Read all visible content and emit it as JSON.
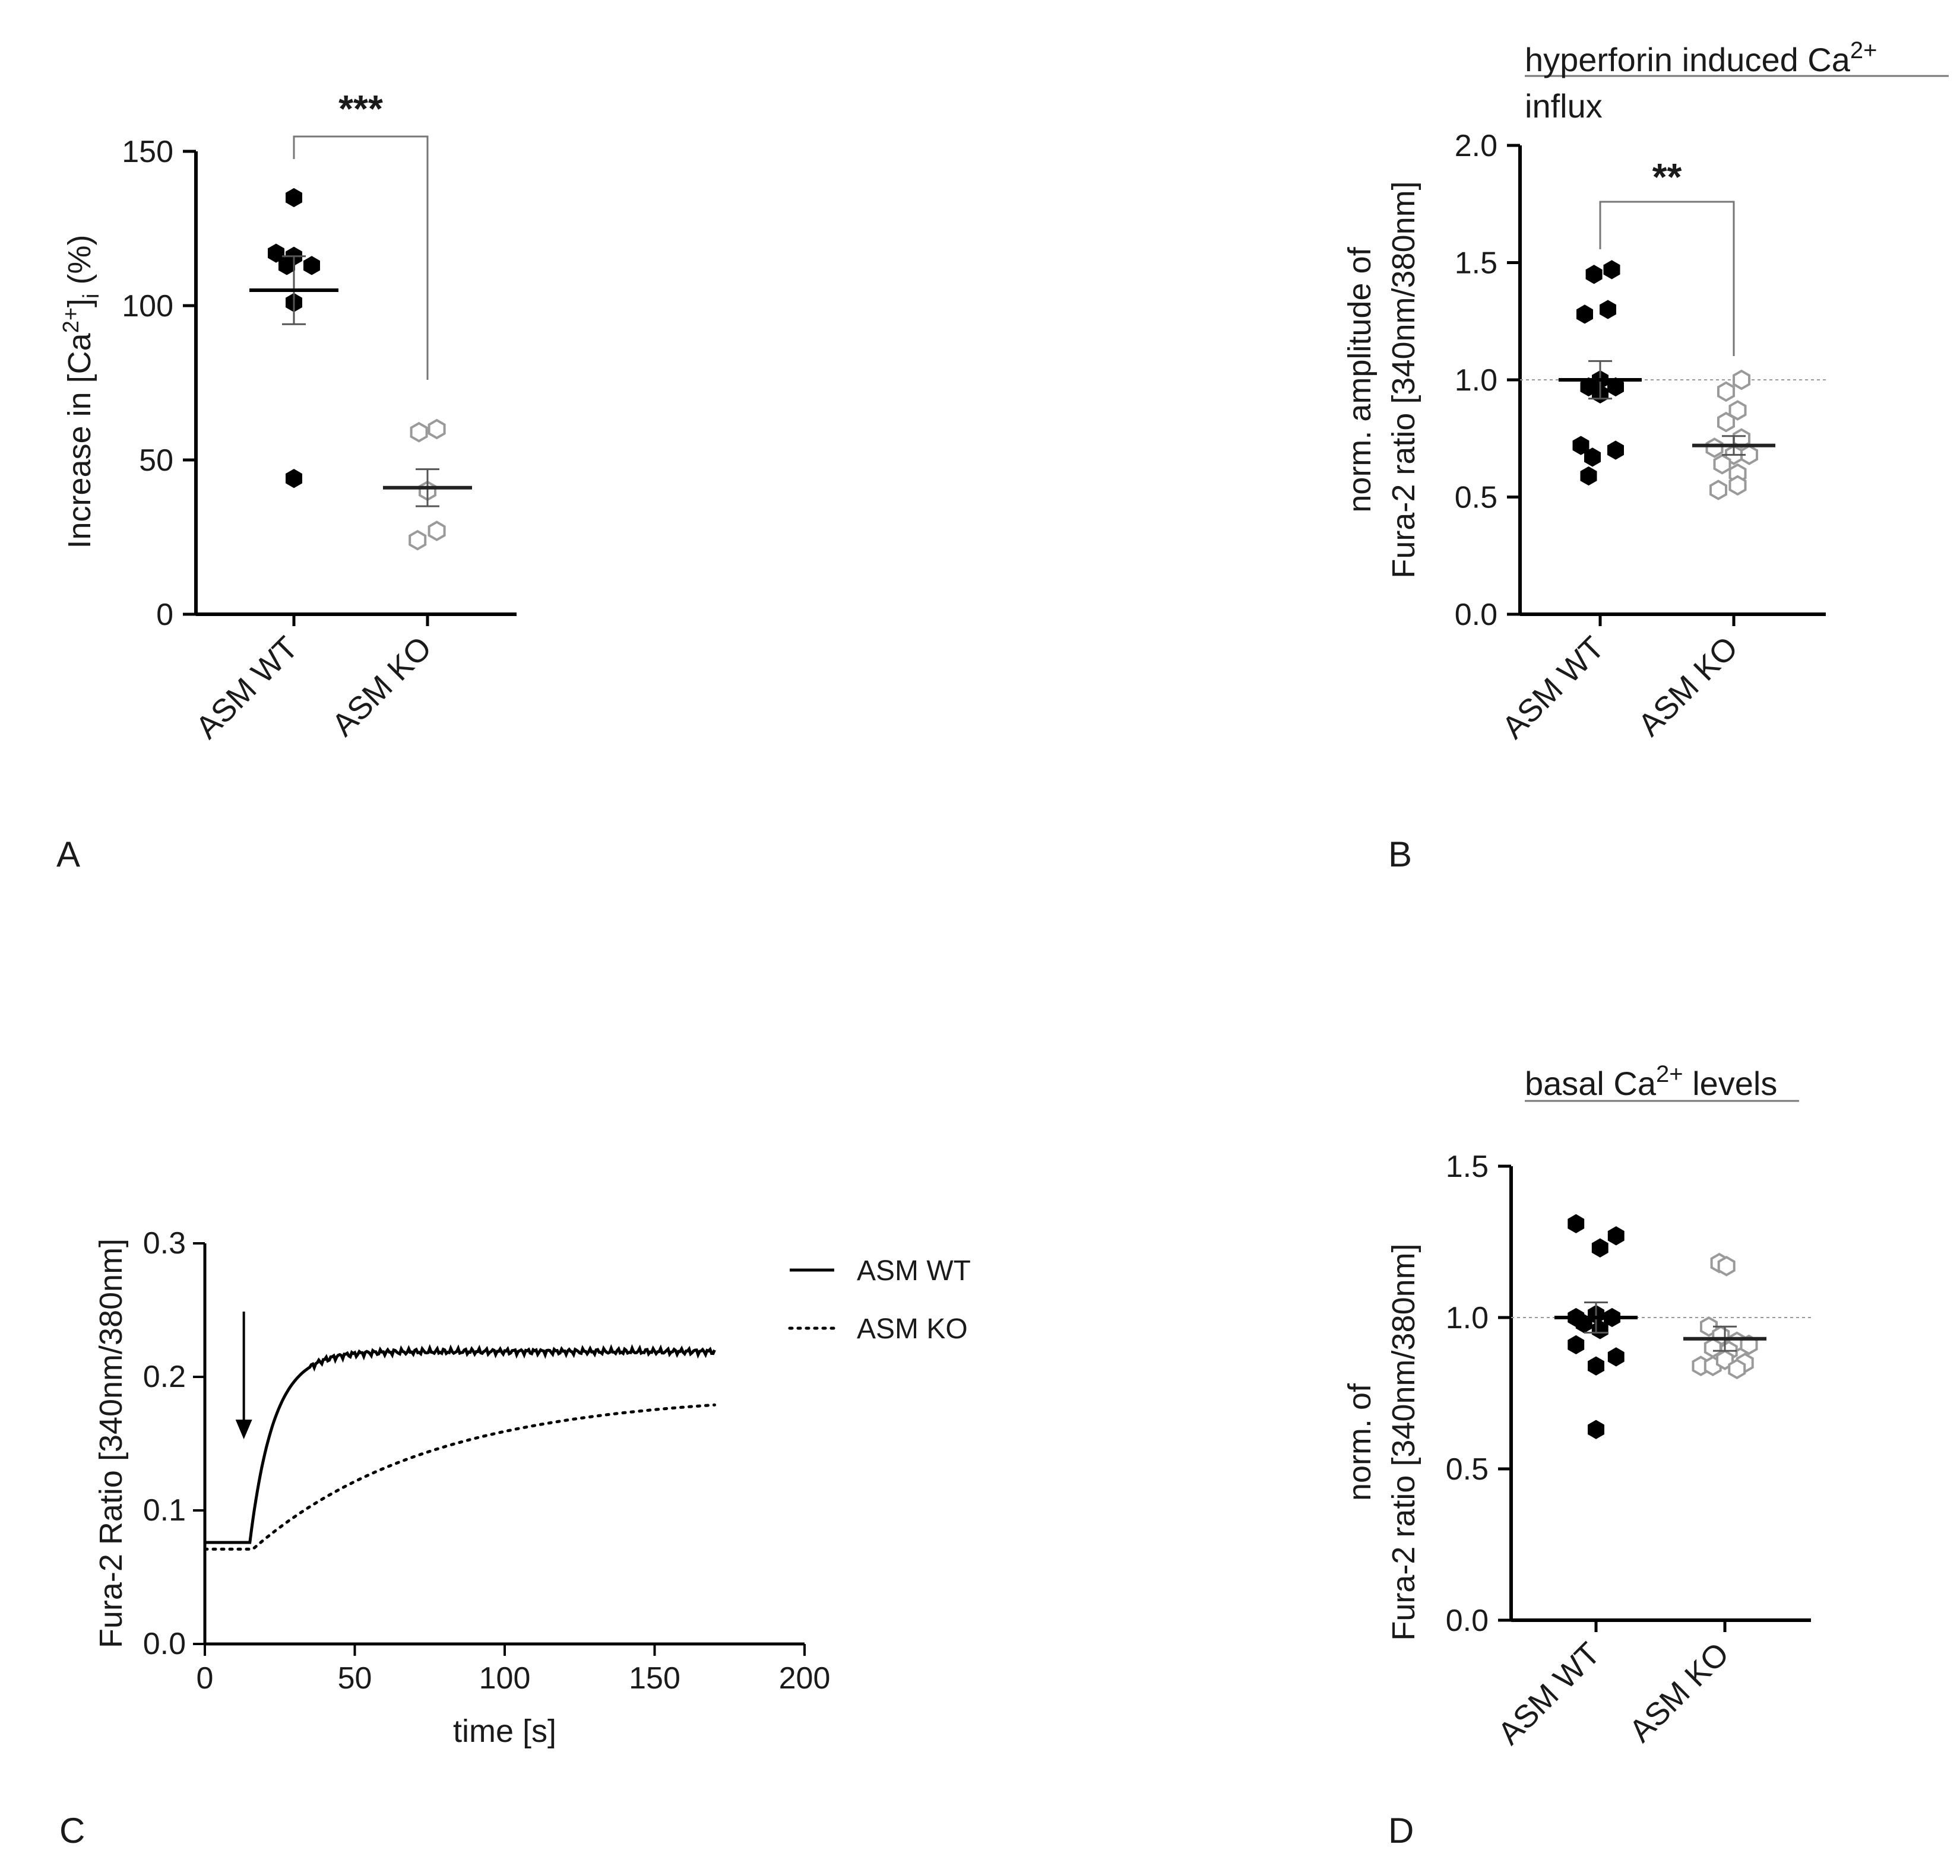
{
  "chart_data": [
    {
      "panel": "A",
      "type": "scatter",
      "title": "",
      "ylabel_prefix": "Increase in [Ca",
      "ylabel_sup": "2+",
      "ylabel_mid": "]",
      "ylabel_sub": "i",
      "ylabel_suffix": " (%)",
      "ylim": [
        0,
        150
      ],
      "yticks": [
        "0",
        "50",
        "100",
        "150"
      ],
      "categories": [
        "ASM WT",
        "ASM KO"
      ],
      "significance": "***",
      "series": [
        {
          "name": "ASM WT",
          "marker": "filled-hexagon",
          "mean": 105,
          "sem": 11,
          "points": [
            [
              0,
              135
            ],
            [
              -0.25,
              117
            ],
            [
              0,
              116
            ],
            [
              -0.1,
              113
            ],
            [
              0.25,
              113
            ],
            [
              0,
              101
            ],
            [
              0,
              44
            ]
          ]
        },
        {
          "name": "ASM KO",
          "marker": "open-hexagon",
          "mean": 41,
          "sem": 6,
          "points": [
            [
              -0.12,
              59
            ],
            [
              0.13,
              60
            ],
            [
              0,
              40
            ],
            [
              -0.14,
              24
            ],
            [
              0.13,
              27
            ]
          ]
        }
      ]
    },
    {
      "panel": "B",
      "type": "scatter",
      "title_line1": "hyperforin induced Ca",
      "title_sup": "2+",
      "title_line2": "influx",
      "ylabel_line1": "norm. amplitude of",
      "ylabel_line2": "Fura-2 ratio [340nm/380nm]",
      "ylim": [
        0,
        2
      ],
      "yticks": [
        "0.0",
        "0.5",
        "1.0",
        "1.5",
        "2.0"
      ],
      "reference_line": 1.0,
      "categories": [
        "ASM WT",
        "ASM KO"
      ],
      "significance": "**",
      "series": [
        {
          "name": "ASM WT",
          "marker": "filled-hexagon",
          "mean": 1.0,
          "sem": 0.08,
          "points": [
            [
              -0.08,
              1.45
            ],
            [
              0.15,
              1.47
            ],
            [
              -0.2,
              1.28
            ],
            [
              0.1,
              1.3
            ],
            [
              0,
              1.0
            ],
            [
              -0.15,
              0.97
            ],
            [
              0.2,
              0.97
            ],
            [
              0,
              0.94
            ],
            [
              -0.25,
              0.72
            ],
            [
              0.2,
              0.7
            ],
            [
              -0.1,
              0.67
            ],
            [
              -0.15,
              0.59
            ]
          ]
        },
        {
          "name": "ASM KO",
          "marker": "open-hexagon",
          "mean": 0.72,
          "sem": 0.04,
          "points": [
            [
              -0.1,
              0.95
            ],
            [
              0.1,
              1.0
            ],
            [
              0.05,
              0.87
            ],
            [
              -0.1,
              0.82
            ],
            [
              0.1,
              0.75
            ],
            [
              -0.25,
              0.71
            ],
            [
              0,
              0.68
            ],
            [
              0.2,
              0.68
            ],
            [
              -0.15,
              0.64
            ],
            [
              0.05,
              0.6
            ],
            [
              -0.2,
              0.53
            ],
            [
              0.05,
              0.55
            ]
          ]
        }
      ]
    },
    {
      "panel": "C",
      "type": "line",
      "ylabel": "Fura-2 Ratio [340nm/380nm]",
      "xlabel": "time [s]",
      "xlim": [
        0,
        200
      ],
      "ylim": [
        0,
        0.3
      ],
      "xticks": [
        "0",
        "50",
        "100",
        "150",
        "200"
      ],
      "yticks": [
        "0.0",
        "0.1",
        "0.2",
        "0.3"
      ],
      "stimulus_arrow_time": 13,
      "series": [
        {
          "name": "ASM WT",
          "style": "solid",
          "baseline": 0.076,
          "onset": 15,
          "plateau": 0.219,
          "tau": 8,
          "end": 170
        },
        {
          "name": "ASM KO",
          "style": "dotted",
          "baseline": 0.071,
          "onset": 16,
          "plateau": 0.188,
          "tau": 60,
          "end": 170
        }
      ]
    },
    {
      "panel": "D",
      "type": "scatter",
      "title_prefix": "basal Ca",
      "title_sup": "2+",
      "title_suffix": " levels",
      "ylabel_line1": "norm. of",
      "ylabel_line2": "Fura-2 ratio [340nm/380nm]",
      "ylim": [
        0,
        1.5
      ],
      "yticks": [
        "0.0",
        "0.5",
        "1.0",
        "1.5"
      ],
      "reference_line": 1.0,
      "categories": [
        "ASM WT",
        "ASM KO"
      ],
      "significance": "",
      "series": [
        {
          "name": "ASM WT",
          "marker": "filled-hexagon",
          "mean": 1.0,
          "sem": 0.05,
          "points": [
            [
              -0.25,
              1.31
            ],
            [
              0.25,
              1.27
            ],
            [
              0.05,
              1.23
            ],
            [
              -0.25,
              1.0
            ],
            [
              0,
              1.01
            ],
            [
              0.2,
              1.0
            ],
            [
              -0.15,
              0.98
            ],
            [
              0.05,
              0.96
            ],
            [
              -0.25,
              0.91
            ],
            [
              0.25,
              0.87
            ],
            [
              0,
              0.84
            ],
            [
              0,
              0.63
            ]
          ]
        },
        {
          "name": "ASM KO",
          "marker": "open-hexagon",
          "mean": 0.93,
          "sem": 0.04,
          "points": [
            [
              -0.07,
              1.18
            ],
            [
              0.02,
              1.17
            ],
            [
              -0.2,
              0.97
            ],
            [
              -0.05,
              0.94
            ],
            [
              0.15,
              0.92
            ],
            [
              -0.15,
              0.9
            ],
            [
              0.05,
              0.89
            ],
            [
              0.3,
              0.91
            ],
            [
              0.25,
              0.85
            ],
            [
              -0.3,
              0.84
            ],
            [
              -0.15,
              0.84
            ],
            [
              0,
              0.86
            ],
            [
              0.15,
              0.83
            ]
          ]
        }
      ]
    }
  ],
  "panel_letters": [
    "A",
    "B",
    "C",
    "D"
  ]
}
